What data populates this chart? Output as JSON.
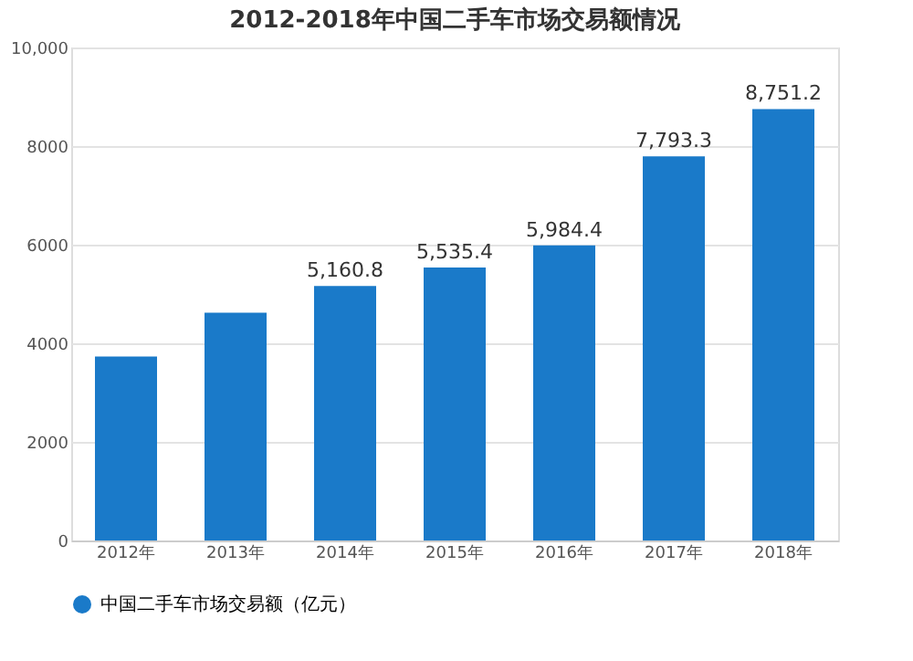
{
  "chart_data": {
    "type": "bar",
    "title": "2012-2018年中国二手车市场交易额情况",
    "categories": [
      "2012年",
      "2013年",
      "2014年",
      "2015年",
      "2016年",
      "2017年",
      "2018年"
    ],
    "series": [
      {
        "name": "中国二手车市场交易额（亿元）",
        "color": "#1a7ac9",
        "values": [
          3730,
          4620,
          5160.8,
          5535.4,
          5984.4,
          7793.3,
          8751.2
        ],
        "value_labels": [
          null,
          null,
          "5,160.8",
          "5,535.4",
          "5,984.4",
          "7,793.3",
          "8,751.2"
        ]
      }
    ],
    "ylim": [
      0,
      10000
    ],
    "yticks": [
      0,
      2000,
      4000,
      6000,
      8000,
      {
        "value": 10000,
        "label": "10,000"
      }
    ],
    "grid": "y",
    "legend": "bottom"
  }
}
